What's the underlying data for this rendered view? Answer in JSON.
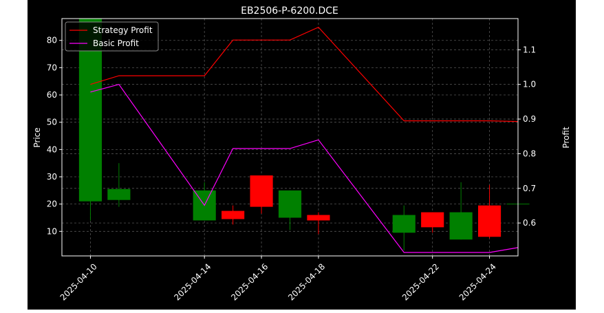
{
  "chart_data": {
    "type": "candlestick+line",
    "title": "EB2506-P-6200.DCE",
    "xlabel": "",
    "ylabel_left": "Price",
    "ylabel_right": "Profit",
    "ylim_left": [
      1,
      88
    ],
    "ylim_right": [
      0.505,
      1.19
    ],
    "xlim": [
      "2025-04-09",
      "2025-04-25"
    ],
    "x_ticks": [
      "2025-04-10",
      "2025-04-14",
      "2025-04-16",
      "2025-04-18",
      "2025-04-22",
      "2025-04-24"
    ],
    "y_ticks_left": [
      10,
      20,
      30,
      40,
      50,
      60,
      70,
      80
    ],
    "y_ticks_right": [
      0.6,
      0.7,
      0.8,
      0.9,
      1.0,
      1.1
    ],
    "grid": true,
    "legend_position": "top-left",
    "colors": {
      "background": "#000000",
      "axes": "#ffffff",
      "grid": "#555555",
      "up": "#008000",
      "down": "#ff0000",
      "strategy": "#ff0000",
      "basic": "#ff00ff"
    },
    "candles": [
      {
        "date": "2025-04-10",
        "open": 21,
        "high": 88,
        "low": 14,
        "close": 88
      },
      {
        "date": "2025-04-11",
        "open": 21.5,
        "high": 35,
        "low": 19,
        "close": 25.5
      },
      {
        "date": "2025-04-14",
        "open": 14,
        "high": 28,
        "low": 14,
        "close": 25
      },
      {
        "date": "2025-04-15",
        "open": 17.5,
        "high": 19.5,
        "low": 12.5,
        "close": 14.5
      },
      {
        "date": "2025-04-16",
        "open": 30.5,
        "high": 30.5,
        "low": 16.5,
        "close": 19
      },
      {
        "date": "2025-04-17",
        "open": 15,
        "high": 25,
        "low": 10.5,
        "close": 25
      },
      {
        "date": "2025-04-18",
        "open": 16,
        "high": 17,
        "low": 9,
        "close": 14
      },
      {
        "date": "2025-04-21",
        "open": 9.5,
        "high": 19.5,
        "low": 3,
        "close": 16
      },
      {
        "date": "2025-04-22",
        "open": 17,
        "high": 17,
        "low": 9.5,
        "close": 11.5
      },
      {
        "date": "2025-04-23",
        "open": 7,
        "high": 28,
        "low": 7,
        "close": 17
      },
      {
        "date": "2025-04-24",
        "open": 19.5,
        "high": 27,
        "low": 7.5,
        "close": 8
      },
      {
        "date": "2025-04-25",
        "open": 20,
        "high": 26,
        "low": 12,
        "close": 20
      }
    ],
    "series": [
      {
        "name": "Strategy Profit",
        "color": "#ff0000",
        "x": [
          "2025-04-10",
          "2025-04-11",
          "2025-04-14",
          "2025-04-15",
          "2025-04-16",
          "2025-04-17",
          "2025-04-18",
          "2025-04-21",
          "2025-04-22",
          "2025-04-23",
          "2025-04-24",
          "2025-04-25"
        ],
        "values": [
          1.0,
          1.025,
          1.025,
          1.128,
          1.128,
          1.128,
          1.165,
          0.895,
          0.895,
          0.895,
          0.895,
          0.893
        ]
      },
      {
        "name": "Basic Profit",
        "color": "#ff00ff",
        "x": [
          "2025-04-10",
          "2025-04-11",
          "2025-04-14",
          "2025-04-15",
          "2025-04-16",
          "2025-04-17",
          "2025-04-18",
          "2025-04-21",
          "2025-04-22",
          "2025-04-23",
          "2025-04-24",
          "2025-04-25"
        ],
        "values": [
          0.978,
          1.0,
          0.651,
          0.815,
          0.815,
          0.815,
          0.84,
          0.515,
          0.515,
          0.515,
          0.515,
          0.529
        ]
      }
    ]
  }
}
